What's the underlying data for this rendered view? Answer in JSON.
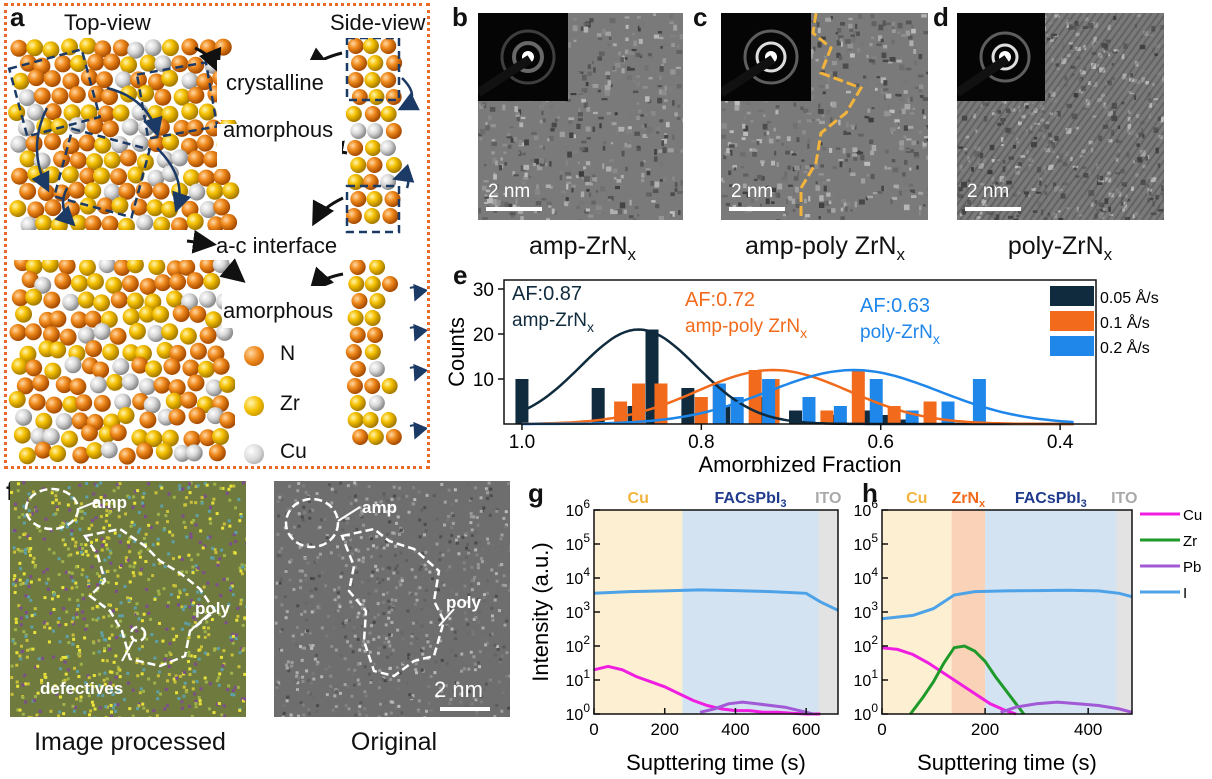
{
  "panel_a": {
    "label": "a",
    "top_view": "Top-view",
    "side_view": "Side-view",
    "labels": {
      "crystalline": "crystalline",
      "amorphous1": "amorphous",
      "interface": "a-c interface",
      "amorphous2": "amorphous"
    },
    "legend": [
      {
        "name": "N",
        "color": "#e07a10"
      },
      {
        "name": "Zr",
        "color": "#f2b700"
      },
      {
        "name": "Cu",
        "color": "#d9d9d9"
      }
    ],
    "border_color": "#e8692a"
  },
  "panels_bcd": [
    {
      "label": "b",
      "caption": "amp-ZrN",
      "sub": "x",
      "scale": "2 nm"
    },
    {
      "label": "c",
      "caption": "amp-poly ZrN",
      "sub": "x",
      "scale": "2 nm"
    },
    {
      "label": "d",
      "caption": "poly-ZrN",
      "sub": "x",
      "scale": "2 nm"
    }
  ],
  "panel_e": {
    "label": "e",
    "chart_data": {
      "type": "bar",
      "xlabel": "Amorphized Fraction",
      "ylabel": "Counts",
      "xlim": [
        1.02,
        0.36
      ],
      "ylim": [
        0,
        32
      ],
      "x_ticks": [
        1.0,
        0.8,
        0.6,
        0.4
      ],
      "y_ticks": [
        10,
        20,
        30
      ],
      "legend_position": "top-right",
      "series": [
        {
          "name": "0.05 Å/s",
          "color": "#0f2b3d",
          "annot_af": "AF:0.87",
          "annot_name": "amp-ZrN",
          "annot_sub": "x",
          "mean": 0.87,
          "sigma": 0.065,
          "peak": 21,
          "bars": [
            [
              1.0,
              10
            ],
            [
              0.915,
              8
            ],
            [
              0.875,
              4
            ],
            [
              0.855,
              21
            ],
            [
              0.815,
              8
            ],
            [
              0.775,
              4
            ],
            [
              0.735,
              6
            ],
            [
              0.695,
              3
            ],
            [
              0.655,
              2
            ],
            [
              0.615,
              3
            ],
            [
              0.595,
              2
            ],
            [
              0.575,
              1
            ]
          ]
        },
        {
          "name": "0.1 Å/s",
          "color": "#f26a1b",
          "annot_af": "AF:0.72",
          "annot_name": "amp-poly ZrN",
          "annot_sub": "x",
          "mean": 0.72,
          "sigma": 0.085,
          "peak": 12,
          "bars": [
            [
              0.89,
              5
            ],
            [
              0.87,
              9
            ],
            [
              0.845,
              9
            ],
            [
              0.8,
              6
            ],
            [
              0.78,
              9
            ],
            [
              0.74,
              12
            ],
            [
              0.72,
              10
            ],
            [
              0.66,
              3
            ],
            [
              0.625,
              12
            ],
            [
              0.585,
              4
            ],
            [
              0.545,
              5
            ]
          ]
        },
        {
          "name": "0.2 Å/s",
          "color": "#1f86ea",
          "annot_af": "AF:0.63",
          "annot_name": "poly-ZrN",
          "annot_sub": "x",
          "mean": 0.63,
          "sigma": 0.095,
          "peak": 12,
          "bars": [
            [
              0.78,
              9
            ],
            [
              0.76,
              6
            ],
            [
              0.725,
              10
            ],
            [
              0.68,
              6
            ],
            [
              0.645,
              4
            ],
            [
              0.605,
              10
            ],
            [
              0.565,
              3
            ],
            [
              0.525,
              5
            ],
            [
              0.49,
              10
            ]
          ]
        }
      ]
    }
  },
  "panel_f": {
    "label": "f",
    "caption_processed": "Image processed",
    "caption_original": "Original",
    "ann_amp": "amp",
    "ann_poly": "poly",
    "ann_defectives": "defectives",
    "scale": "2 nm"
  },
  "panel_g": {
    "label": "g",
    "chart_data": {
      "type": "line",
      "xlabel": "Supttering time (s)",
      "ylabel": "Intensity (a.u.)",
      "y_scale": "log",
      "xlim": [
        0,
        690
      ],
      "ylim_exp": [
        0,
        6
      ],
      "x_ticks": [
        0,
        200,
        400,
        600
      ],
      "regions": [
        {
          "name": "Cu",
          "x0": 0,
          "x1": 250,
          "color": "#fdf0d2",
          "label_color": "#f2b43c"
        },
        {
          "name": "FACsPbI",
          "sub": "3",
          "x0": 250,
          "x1": 635,
          "color": "#d4e3f1",
          "label_color": "#1f3a8c"
        },
        {
          "name": "ITO",
          "x0": 635,
          "x1": 690,
          "color": "#e3e3e3",
          "label_color": "#aaaaaa"
        }
      ],
      "series": [
        {
          "name": "Cu",
          "color": "#f01ee0",
          "x": [
            0,
            40,
            80,
            120,
            160,
            200,
            240,
            280,
            320,
            360,
            400,
            440,
            480,
            520,
            560,
            600,
            640
          ],
          "log10": [
            1.3,
            1.4,
            1.3,
            1.1,
            0.95,
            0.8,
            0.6,
            0.4,
            0.25,
            0.15,
            0.1,
            0.1,
            0.05,
            0.05,
            0.02,
            0.0,
            0.0
          ]
        },
        {
          "name": "Pb",
          "color": "#a259d6",
          "x": [
            300,
            340,
            380,
            420,
            460,
            500,
            540,
            580,
            620
          ],
          "log10": [
            0.05,
            0.15,
            0.3,
            0.35,
            0.3,
            0.25,
            0.2,
            0.1,
            0.0
          ]
        },
        {
          "name": "I",
          "color": "#4ea3e8",
          "x": [
            0,
            100,
            200,
            300,
            400,
            500,
            600,
            640,
            690
          ],
          "log10": [
            3.55,
            3.6,
            3.62,
            3.65,
            3.63,
            3.6,
            3.55,
            3.3,
            3.05
          ]
        }
      ]
    }
  },
  "panel_h": {
    "label": "h",
    "chart_data": {
      "type": "line",
      "xlabel": "Supttering time (s)",
      "y_scale": "log",
      "xlim": [
        0,
        485
      ],
      "ylim_exp": [
        0,
        6
      ],
      "x_ticks": [
        0,
        200,
        400
      ],
      "regions": [
        {
          "name": "Cu",
          "x0": 0,
          "x1": 135,
          "color": "#fdf0d2",
          "label_color": "#f2b43c"
        },
        {
          "name": "ZrN",
          "sub": "x",
          "x0": 135,
          "x1": 200,
          "color": "#fad2b8",
          "label_color": "#f26a1b"
        },
        {
          "name": "FACsPbI",
          "sub": "3",
          "x0": 200,
          "x1": 455,
          "color": "#d4e3f1",
          "label_color": "#1f3a8c"
        },
        {
          "name": "ITO",
          "x0": 455,
          "x1": 485,
          "color": "#e3e3e3",
          "label_color": "#aaaaaa"
        }
      ],
      "legend": [
        {
          "name": "Cu",
          "color": "#f01ee0"
        },
        {
          "name": "Zr",
          "color": "#1f9a2a"
        },
        {
          "name": "Pb",
          "color": "#a259d6"
        },
        {
          "name": "I",
          "color": "#4ea3e8"
        }
      ],
      "series": [
        {
          "name": "Cu",
          "color": "#f01ee0",
          "x": [
            0,
            30,
            60,
            90,
            120,
            150,
            180,
            210,
            240,
            260
          ],
          "log10": [
            1.95,
            1.9,
            1.75,
            1.5,
            1.2,
            0.9,
            0.6,
            0.3,
            0.1,
            0.0
          ]
        },
        {
          "name": "Zr",
          "color": "#1f9a2a",
          "x": [
            55,
            80,
            100,
            120,
            140,
            160,
            180,
            200,
            220,
            240,
            260,
            275
          ],
          "log10": [
            0.0,
            0.5,
            0.95,
            1.5,
            1.95,
            2.0,
            1.85,
            1.55,
            1.1,
            0.7,
            0.3,
            0.0
          ]
        },
        {
          "name": "Pb",
          "color": "#a259d6",
          "x": [
            230,
            260,
            300,
            340,
            380,
            420,
            460,
            485
          ],
          "log10": [
            0.05,
            0.2,
            0.3,
            0.35,
            0.3,
            0.25,
            0.15,
            0.05
          ]
        },
        {
          "name": "I",
          "color": "#4ea3e8",
          "x": [
            0,
            60,
            100,
            140,
            180,
            240,
            300,
            360,
            420,
            460,
            485
          ],
          "log10": [
            2.8,
            2.9,
            3.1,
            3.5,
            3.6,
            3.62,
            3.63,
            3.64,
            3.62,
            3.55,
            3.45
          ]
        }
      ]
    }
  }
}
